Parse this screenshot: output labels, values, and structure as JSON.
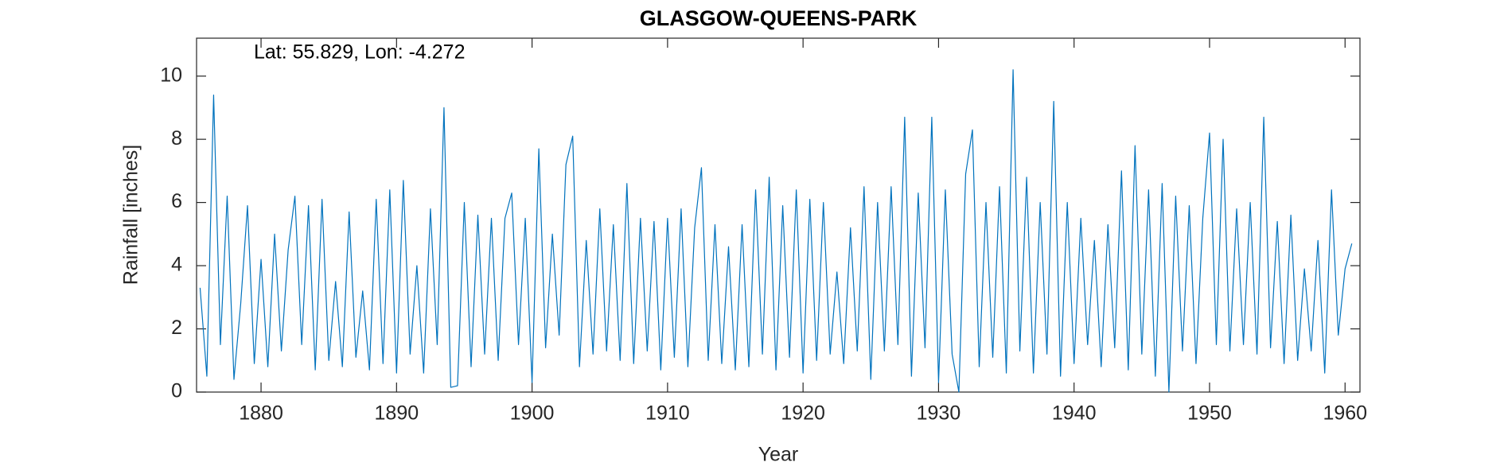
{
  "chart_data": {
    "type": "line",
    "title": "GLASGOW-QUEENS-PARK",
    "annotation": "Lat: 55.829, Lon: -4.272",
    "xlabel": "Year",
    "ylabel": "Rainfall [inches]",
    "color": "#0072bd",
    "xlim": [
      1875.24,
      1961.1
    ],
    "xticks": [
      1880,
      1890,
      1900,
      1910,
      1920,
      1930,
      1940,
      1950,
      1960
    ],
    "ylim": [
      0,
      11.2
    ],
    "yticks": [
      0,
      2,
      4,
      6,
      8,
      10
    ],
    "x": [
      1875.5,
      1876,
      1876.5,
      1877,
      1877.5,
      1878,
      1878.5,
      1879,
      1879.5,
      1880,
      1880.5,
      1881,
      1881.5,
      1882,
      1882.5,
      1883,
      1883.5,
      1884,
      1884.5,
      1885,
      1885.5,
      1886,
      1886.5,
      1887,
      1887.5,
      1888,
      1888.5,
      1889,
      1889.5,
      1890,
      1890.5,
      1891,
      1891.5,
      1892,
      1892.5,
      1893,
      1893.5,
      1894,
      1894.5,
      1895,
      1895.5,
      1896,
      1896.5,
      1897,
      1897.5,
      1898,
      1898.5,
      1899,
      1899.5,
      1900,
      1900.5,
      1901,
      1901.5,
      1902,
      1902.5,
      1903,
      1903.5,
      1904,
      1904.5,
      1905,
      1905.5,
      1906,
      1906.5,
      1907,
      1907.5,
      1908,
      1908.5,
      1909,
      1909.5,
      1910,
      1910.5,
      1911,
      1911.5,
      1912,
      1912.5,
      1913,
      1913.5,
      1914,
      1914.5,
      1915,
      1915.5,
      1916,
      1916.5,
      1917,
      1917.5,
      1918,
      1918.5,
      1919,
      1919.5,
      1920,
      1920.5,
      1921,
      1921.5,
      1922,
      1922.5,
      1923,
      1923.5,
      1924,
      1924.5,
      1925,
      1925.5,
      1926,
      1926.5,
      1927,
      1927.5,
      1928,
      1928.5,
      1929,
      1929.5,
      1930,
      1930.5,
      1931,
      1931.5,
      1932,
      1932.5,
      1933,
      1933.5,
      1934,
      1934.5,
      1935,
      1935.5,
      1936,
      1936.5,
      1937,
      1937.5,
      1938,
      1938.5,
      1939,
      1939.5,
      1940,
      1940.5,
      1941,
      1941.5,
      1942,
      1942.5,
      1943,
      1943.5,
      1944,
      1944.5,
      1945,
      1945.5,
      1946,
      1946.5,
      1947,
      1947.5,
      1948,
      1948.5,
      1949,
      1949.5,
      1950,
      1950.5,
      1951,
      1951.5,
      1952,
      1952.5,
      1953,
      1953.5,
      1954,
      1954.5,
      1955,
      1955.5,
      1956,
      1956.5,
      1957,
      1957.5,
      1958,
      1958.5,
      1959,
      1959.5,
      1960,
      1960.5
    ],
    "values": [
      3.3,
      0.5,
      9.4,
      1.5,
      6.2,
      0.4,
      2.8,
      5.9,
      0.9,
      4.2,
      0.8,
      5.0,
      1.3,
      4.5,
      6.2,
      1.5,
      5.9,
      0.7,
      6.1,
      1.0,
      3.5,
      0.8,
      5.7,
      1.1,
      3.2,
      0.7,
      6.1,
      0.9,
      6.4,
      0.6,
      6.7,
      1.2,
      4.0,
      0.6,
      5.8,
      1.5,
      9.0,
      0.15,
      0.2,
      6.0,
      0.8,
      5.6,
      1.2,
      5.5,
      1.0,
      5.5,
      6.3,
      1.5,
      5.5,
      0.3,
      7.7,
      1.4,
      5.0,
      1.8,
      7.2,
      8.1,
      0.8,
      4.8,
      1.2,
      5.8,
      1.3,
      5.3,
      1.0,
      6.6,
      0.9,
      5.5,
      1.3,
      5.4,
      0.7,
      5.5,
      1.1,
      5.8,
      0.8,
      5.2,
      7.1,
      1.0,
      5.3,
      0.9,
      4.6,
      0.7,
      5.3,
      0.8,
      6.4,
      1.2,
      6.8,
      0.7,
      5.9,
      1.1,
      6.4,
      0.6,
      6.1,
      1.0,
      6.0,
      1.2,
      3.8,
      0.9,
      5.2,
      1.3,
      6.5,
      0.4,
      6.0,
      1.3,
      6.5,
      1.5,
      8.7,
      0.5,
      6.3,
      1.4,
      8.7,
      0.3,
      6.4,
      1.2,
      0,
      6.9,
      8.3,
      0.8,
      6.0,
      1.1,
      6.5,
      0.6,
      10.2,
      1.3,
      6.8,
      0.6,
      6.0,
      1.2,
      9.2,
      0.5,
      6.0,
      0.9,
      5.5,
      1.5,
      4.8,
      0.8,
      5.3,
      1.4,
      7.0,
      0.7,
      7.8,
      1.2,
      6.4,
      0.5,
      6.6,
      0,
      6.2,
      1.3,
      5.9,
      0.9,
      5.5,
      8.2,
      1.5,
      8.0,
      1.3,
      5.8,
      1.5,
      6.0,
      1.2,
      8.7,
      1.4,
      5.4,
      0.9,
      5.6,
      1.0,
      3.9,
      1.3,
      4.8,
      0.6,
      6.4,
      1.8,
      3.9,
      4.7
    ]
  }
}
